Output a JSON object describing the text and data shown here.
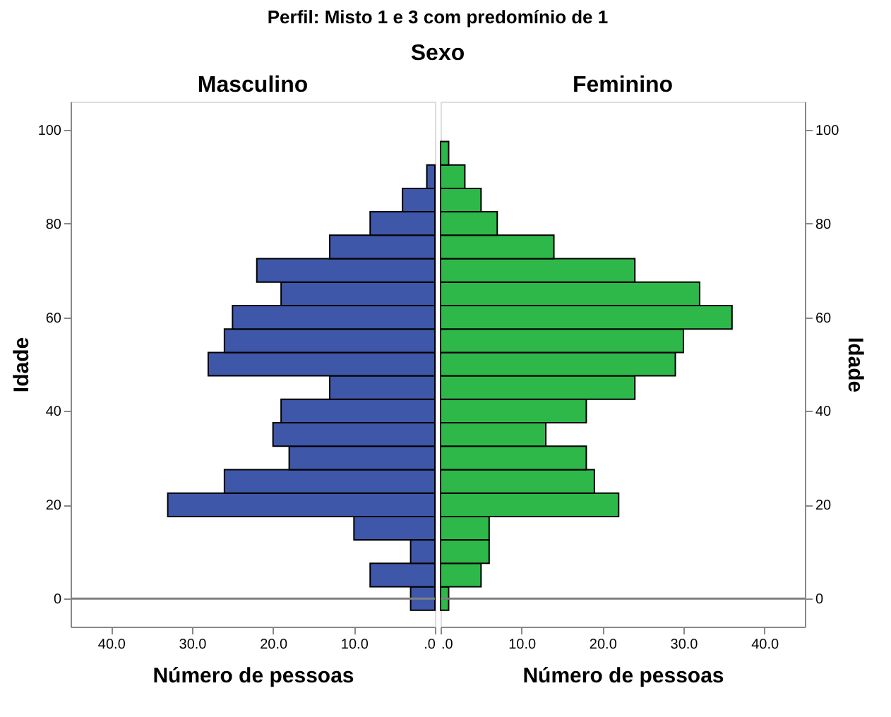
{
  "chart_data": [
    {
      "type": "histogram",
      "orientation": "horizontal",
      "title": "Masculino",
      "annotations": [
        "Perfil: Misto 1 e 3 com predomínio de 1",
        "Sexo"
      ],
      "xlabel": "Número de pessoas",
      "ylabel": "Idade",
      "bins": [
        -2.5,
        2.5,
        7.5,
        12.5,
        17.5,
        22.5,
        27.5,
        32.5,
        37.5,
        42.5,
        47.5,
        52.5,
        57.5,
        62.5,
        67.5,
        72.5,
        77.5,
        82.5,
        87.5,
        92.5,
        97.5
      ],
      "values": [
        3,
        8,
        3,
        10,
        33,
        26,
        18,
        20,
        19,
        13,
        28,
        26,
        25,
        19,
        22,
        13,
        8,
        4,
        1,
        0
      ],
      "color": "#3f57a8",
      "xlim": [
        45,
        0
      ],
      "xticks": [
        {
          "value": 40,
          "label": "40.0"
        },
        {
          "value": 30,
          "label": "30.0"
        },
        {
          "value": 20,
          "label": "20.0"
        },
        {
          "value": 10,
          "label": "10.0"
        },
        {
          "value": 0,
          "label": ".0"
        }
      ],
      "ylim": [
        -6,
        106
      ],
      "yticks": [
        0,
        20,
        40,
        60,
        80,
        100
      ],
      "ref_lines": [
        {
          "axis": "y",
          "value": 0,
          "color": "#808080"
        }
      ],
      "grid": false
    },
    {
      "type": "histogram",
      "orientation": "horizontal",
      "title": "Feminino",
      "xlabel": "Número de pessoas",
      "ylabel": "Idade",
      "bins": [
        -2.5,
        2.5,
        7.5,
        12.5,
        17.5,
        22.5,
        27.5,
        32.5,
        37.5,
        42.5,
        47.5,
        52.5,
        57.5,
        62.5,
        67.5,
        72.5,
        77.5,
        82.5,
        87.5,
        92.5,
        97.5
      ],
      "values": [
        1,
        5,
        6,
        6,
        22,
        19,
        18,
        13,
        18,
        24,
        29,
        30,
        36,
        32,
        24,
        14,
        7,
        5,
        3,
        1
      ],
      "color": "#2fb84a",
      "xlim": [
        0,
        45
      ],
      "xticks": [
        {
          "value": 0,
          "label": ".0"
        },
        {
          "value": 10,
          "label": "10.0"
        },
        {
          "value": 20,
          "label": "20.0"
        },
        {
          "value": 30,
          "label": "30.0"
        },
        {
          "value": 40,
          "label": "40.0"
        }
      ],
      "ylim": [
        -6,
        106
      ],
      "yticks": [
        0,
        20,
        40,
        60,
        80,
        100
      ],
      "ref_lines": [
        {
          "axis": "y",
          "value": 0,
          "color": "#808080"
        }
      ],
      "grid": false
    }
  ]
}
